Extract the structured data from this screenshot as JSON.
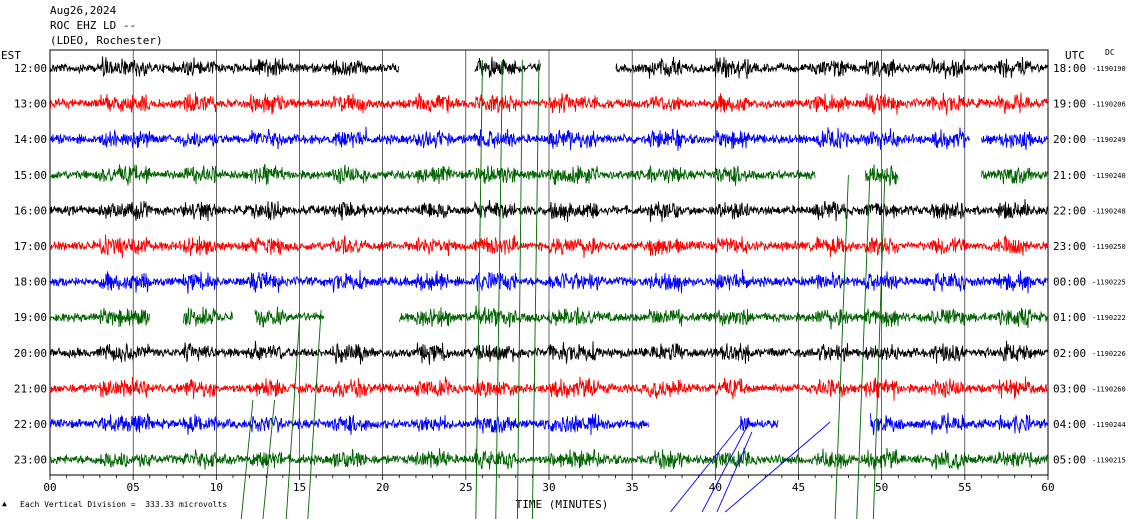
{
  "header": {
    "date": "Aug26,2024",
    "station": "ROC EHZ LD --",
    "network": "(LDEO, Rochester)"
  },
  "labels": {
    "left_zone": "EST",
    "right_zone": "UTC",
    "dc": "DC",
    "xlabel": "TIME (MINUTES)",
    "footnote": "Each Vertical Division =  333.33 microvolts"
  },
  "colors": {
    "cycle": [
      "#000000",
      "#ff0000",
      "#0000ff",
      "#006400"
    ],
    "grid": "#000000",
    "event_line": "#006400",
    "event_line_blue": "#0000ff"
  },
  "chart_data": {
    "type": "line",
    "title": "",
    "xlabel": "TIME (MINUTES)",
    "xlim": [
      0,
      60
    ],
    "x_ticks": [
      "00",
      "05",
      "10",
      "15",
      "20",
      "25",
      "30",
      "35",
      "40",
      "45",
      "50",
      "55",
      "60"
    ],
    "minor_tick_step_minutes": 1,
    "vertical_division_microvolts": 333.33,
    "rows": [
      {
        "left": "12:00",
        "right": "18:00",
        "dc": "-1190190",
        "gaps": [
          [
            21,
            25.5
          ],
          [
            29.5,
            34
          ]
        ]
      },
      {
        "left": "13:00",
        "right": "19:00",
        "dc": "-1190206",
        "gaps": []
      },
      {
        "left": "14:00",
        "right": "20:00",
        "dc": "-1190249",
        "gaps": [
          [
            55.3,
            56
          ]
        ]
      },
      {
        "left": "15:00",
        "right": "21:00",
        "dc": "-1190240",
        "gaps": [
          [
            46,
            49
          ],
          [
            51,
            56
          ]
        ]
      },
      {
        "left": "16:00",
        "right": "22:00",
        "dc": "-1190248",
        "gaps": []
      },
      {
        "left": "17:00",
        "right": "23:00",
        "dc": "-1190250",
        "gaps": []
      },
      {
        "left": "18:00",
        "right": "00:00",
        "dc": "-1190225",
        "gaps": []
      },
      {
        "left": "19:00",
        "right": "01:00",
        "dc": "-1190222",
        "gaps": [
          [
            6,
            8
          ],
          [
            11,
            12.3
          ],
          [
            16.5,
            21
          ]
        ]
      },
      {
        "left": "20:00",
        "right": "02:00",
        "dc": "-1190226",
        "gaps": []
      },
      {
        "left": "21:00",
        "right": "03:00",
        "dc": "-1190260",
        "gaps": []
      },
      {
        "left": "22:00",
        "right": "04:00",
        "dc": "-1190244",
        "gaps": [
          [
            36,
            41.5
          ],
          [
            43.8,
            49.3
          ]
        ]
      },
      {
        "left": "23:00",
        "right": "05:00",
        "dc": "-1190215",
        "gaps": []
      }
    ]
  }
}
